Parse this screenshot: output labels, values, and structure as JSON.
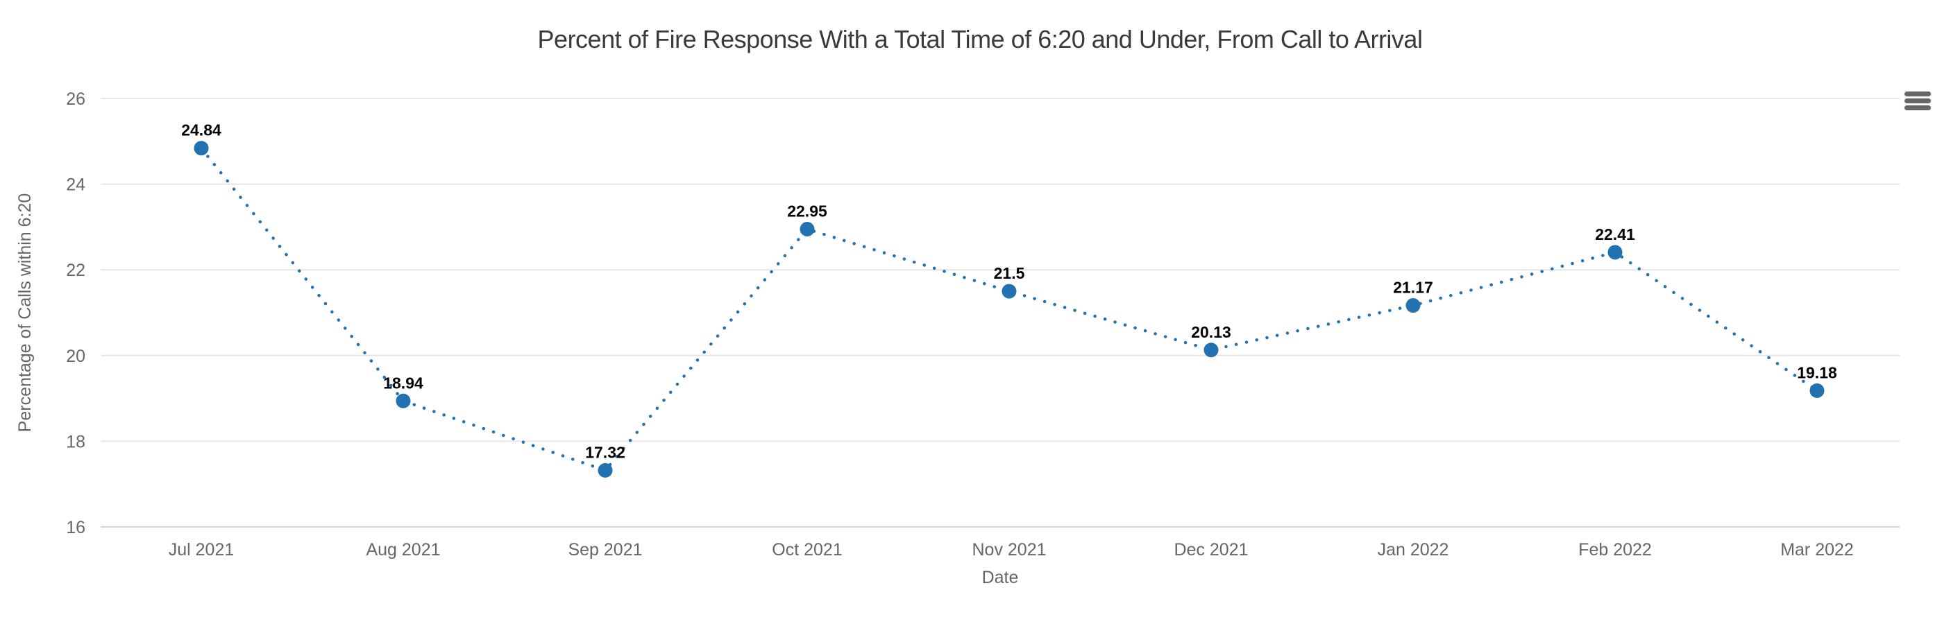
{
  "chart": {
    "context_menu_icon": "hamburger-menu-icon",
    "context_menu_tooltip": "Chart context menu"
  },
  "chart_data": {
    "type": "line",
    "title": "Percent of Fire Response With a Total Time of 6:20 and Under, From Call to Arrival",
    "categories": [
      "Jul 2021",
      "Aug 2021",
      "Sep 2021",
      "Oct 2021",
      "Nov 2021",
      "Dec 2021",
      "Jan 2022",
      "Feb 2022",
      "Mar 2022"
    ],
    "values": [
      24.84,
      18.94,
      17.32,
      22.95,
      21.5,
      20.13,
      21.17,
      22.41,
      19.18
    ],
    "xlabel": "Date",
    "ylabel": "Percentage of Calls within 6:20",
    "y_ticks": [
      16,
      18,
      20,
      22,
      24,
      26
    ],
    "ylim": [
      16,
      26
    ],
    "line_style": "dotted",
    "marker": "circle",
    "data_labels": "on",
    "legend": "none",
    "grid": "horizontal",
    "colors": {
      "series": "#2271b1",
      "data_label": "#000000",
      "axis_text": "#666666",
      "title_text": "#3a3a3a",
      "gridline": "#e6e6e6",
      "axis_line": "#ccd6eb",
      "menu_icon": "#666666",
      "background": "#ffffff"
    }
  }
}
